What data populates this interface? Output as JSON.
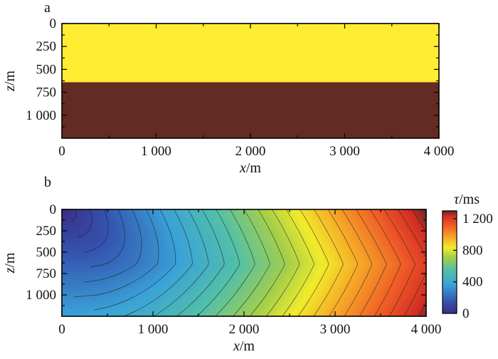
{
  "chart_data": [
    {
      "type": "heatmap",
      "panel": "a",
      "panel_label": "a",
      "description_layers": [
        {
          "z_top": 0,
          "z_bottom": 640,
          "color": "#ffec33"
        },
        {
          "z_top": 640,
          "z_bottom": 1250,
          "color": "#642a24"
        }
      ],
      "xlim": [
        0,
        4000
      ],
      "ylim": [
        0,
        1250
      ],
      "x_ticks": [
        0,
        1000,
        2000,
        3000,
        4000
      ],
      "x_tick_labels": [
        "0",
        "1 000",
        "2 000",
        "3 000",
        "4 000"
      ],
      "y_ticks": [
        0,
        250,
        500,
        750,
        1000
      ],
      "y_tick_labels": [
        "0",
        "250",
        "500",
        "750",
        "1 000"
      ],
      "xlabel_var": "x",
      "xlabel_unit": "/m",
      "ylabel_var": "z",
      "ylabel_unit": "/m"
    },
    {
      "type": "heatmap",
      "panel": "b",
      "panel_label": "b",
      "xlim": [
        0,
        4000
      ],
      "ylim": [
        0,
        1250
      ],
      "x_ticks": [
        0,
        1000,
        2000,
        3000,
        4000
      ],
      "x_tick_labels": [
        "0",
        "1 000",
        "2 000",
        "3 000",
        "4 000"
      ],
      "y_ticks": [
        0,
        250,
        500,
        750,
        1000
      ],
      "y_tick_labels": [
        "0",
        "250",
        "500",
        "750",
        "1 000"
      ],
      "xlabel_var": "x",
      "xlabel_unit": "/m",
      "ylabel_var": "z",
      "ylabel_unit": "/m",
      "colorbar": {
        "title_var": "τ",
        "title_unit": "/ms",
        "range": [
          0,
          1300
        ],
        "ticks": [
          0,
          400,
          800,
          1200
        ],
        "tick_labels": [
          "0",
          "400",
          "800",
          "1 200"
        ],
        "colormap": "jet-like"
      },
      "field": {
        "description": "traveltime from source at x=0, z=0",
        "interface_z": 640,
        "x_max_at_top": 4000,
        "tau_max": 1300,
        "contour_count": 26
      }
    }
  ]
}
